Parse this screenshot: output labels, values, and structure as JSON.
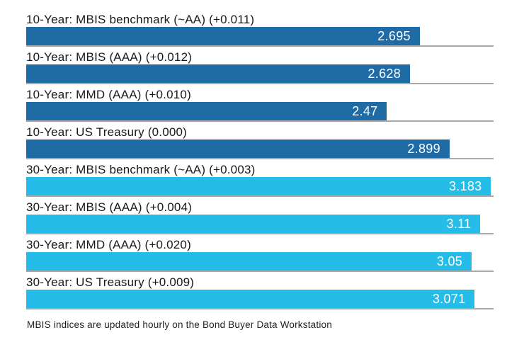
{
  "chart_data": {
    "type": "bar",
    "orientation": "horizontal",
    "title": "",
    "xlabel": "",
    "ylabel": "",
    "xlim": [
      0,
      3.2
    ],
    "grid": false,
    "legend": "none",
    "bars": [
      {
        "label": "10-Year: MBIS benchmark (~AA) (+0.011)",
        "value": 2.695,
        "value_label": "2.695",
        "color": "#1e6ba6",
        "group": "10-year"
      },
      {
        "label": "10-Year: MBIS (AAA) (+0.012)",
        "value": 2.628,
        "value_label": "2.628",
        "color": "#1e6ba6",
        "group": "10-year"
      },
      {
        "label": "10-Year: MMD (AAA) (+0.010)",
        "value": 2.47,
        "value_label": "2.47",
        "color": "#1e6ba6",
        "group": "10-year"
      },
      {
        "label": "10-Year: US Treasury (0.000)",
        "value": 2.899,
        "value_label": "2.899",
        "color": "#1e6ba6",
        "group": "10-year"
      },
      {
        "label": "30-Year: MBIS benchmark (~AA) (+0.003)",
        "value": 3.183,
        "value_label": "3.183",
        "color": "#25bce8",
        "group": "30-year"
      },
      {
        "label": "30-Year: MBIS (AAA) (+0.004)",
        "value": 3.11,
        "value_label": "3.11",
        "color": "#25bce8",
        "group": "30-year"
      },
      {
        "label": "30-Year: MMD (AAA) (+0.020)",
        "value": 3.05,
        "value_label": "3.05",
        "color": "#25bce8",
        "group": "30-year"
      },
      {
        "label": "30-Year: US Treasury (+0.009)",
        "value": 3.071,
        "value_label": "3.071",
        "color": "#25bce8",
        "group": "30-year"
      }
    ],
    "footnote": "MBIS indices are updated hourly on the Bond Buyer Data Workstation",
    "colors": {
      "ten_year_bar": "#1e6ba6",
      "thirty_year_bar": "#25bce8",
      "separator_line": "#a9a9a9",
      "value_text": "#ffffff",
      "label_text": "#1a1a1a",
      "background": "#ffffff"
    }
  }
}
